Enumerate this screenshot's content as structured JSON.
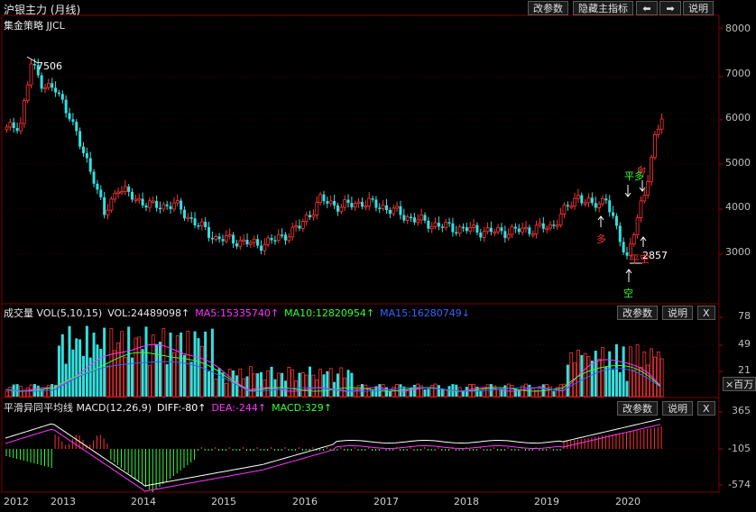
{
  "window_title": "沪银主力 (月线)",
  "toolbar": {
    "edit_params": "改参数",
    "hide_indicator": "隐藏主指标",
    "left_arrow": "⬅",
    "right_arrow": "➡",
    "help": "说明"
  },
  "main_pane": {
    "indicator_name": "集金策略 JJCL",
    "y_ticks": [
      "8000",
      "7000",
      "6000",
      "5000",
      "4000",
      "3000"
    ],
    "high_label": "7506",
    "low_label": "2857",
    "signals": {
      "duo1": "多",
      "duo2": "多",
      "ping_duo": "平多",
      "ping_kong": "平空",
      "kong": "空"
    },
    "colors": {
      "up": "#ff3333",
      "down": "#33e0e0",
      "grid": "#3a0000"
    }
  },
  "volume_pane": {
    "title": "成交量 VOL(5,10,15)",
    "vol": "VOL:24489098↑",
    "ma5": "MA5:15335740↑",
    "ma10": "MA10:12820954↑",
    "ma15": "MA15:16280749↓",
    "y_ticks": [
      "78",
      "49",
      "21"
    ],
    "unit_button": "×百万",
    "edit_params": "改参数",
    "help": "说明",
    "close": "X",
    "colors": {
      "ma5": "#ff33ff",
      "ma10": "#33ff33",
      "ma15": "#3366ff"
    }
  },
  "macd_pane": {
    "title": "平滑异同平均线 MACD(12,26,9)",
    "diff": "DIFF:-80↑",
    "dea": "DEA:-244↑",
    "macd": "MACD:329↑",
    "y_ticks": [
      "365",
      "-105",
      "-574"
    ],
    "edit_params": "改参数",
    "help": "说明",
    "close": "X"
  },
  "x_axis": [
    "2012",
    "2013",
    "2014",
    "2015",
    "2016",
    "2017",
    "2018",
    "2019",
    "2020"
  ]
}
